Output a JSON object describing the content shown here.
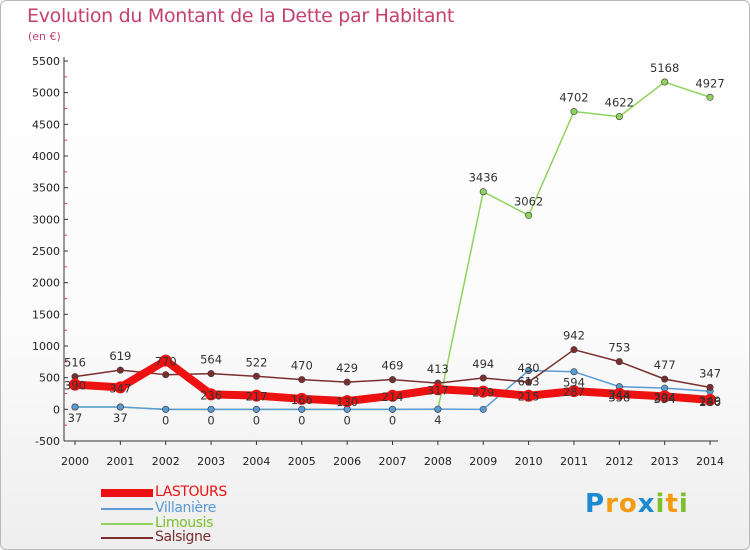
{
  "header": {
    "title": "Evolution du Montant de la Dette par Habitant",
    "unit": "(en €)"
  },
  "logo": {
    "letters": [
      "P",
      "r",
      "o",
      "x",
      "i",
      "t",
      "i"
    ],
    "colors": [
      "#1b8ad0",
      "#f39c12",
      "#f39c12",
      "#1b8ad0",
      "#7cbf2b",
      "#f39c12",
      "#7cbf2b"
    ]
  },
  "chart_data": {
    "type": "line",
    "x": [
      "2000",
      "2001",
      "2002",
      "2003",
      "2004",
      "2005",
      "2006",
      "2007",
      "2008",
      "2009",
      "2010",
      "2011",
      "2012",
      "2013",
      "2014"
    ],
    "ylim": [
      -500,
      5500
    ],
    "yticks": [
      "-500",
      "0",
      "500",
      "1000",
      "1500",
      "2000",
      "2500",
      "3000",
      "3500",
      "4000",
      "4500",
      "5000",
      "5500"
    ],
    "grid": false,
    "legend_position": "bottom-left",
    "series": [
      {
        "name": "LASTOURS",
        "color": "#ee1111",
        "width": 8,
        "values": [
          390,
          347,
          770,
          236,
          217,
          166,
          130,
          214,
          317,
          279,
          215,
          287,
          244,
          204,
          149
        ],
        "labels": [
          "390",
          "347",
          "770",
          "236",
          "217",
          "166",
          "130",
          "214",
          "317",
          "279",
          "215",
          "287",
          "244",
          "204",
          "149"
        ]
      },
      {
        "name": "Villanière",
        "color": "#5b9bd5",
        "width": 1.5,
        "values": [
          37,
          37,
          0,
          0,
          0,
          0,
          0,
          0,
          4,
          0,
          613,
          594,
          358,
          334,
          286
        ],
        "labels": [
          "37",
          "37",
          "0",
          "0",
          "0",
          "0",
          "0",
          "0",
          "4",
          "",
          "613",
          "594",
          "358",
          "334",
          "286"
        ]
      },
      {
        "name": "Limousis",
        "color": "#8fd35c",
        "width": 1.5,
        "values": [
          37,
          37,
          0,
          0,
          0,
          0,
          0,
          0,
          0,
          3436,
          3062,
          4702,
          4622,
          5168,
          4927
        ],
        "labels": [
          "",
          "",
          "",
          "",
          "",
          "",
          "",
          "",
          "",
          "3436",
          "3062",
          "4702",
          "4622",
          "5168",
          "4927"
        ]
      },
      {
        "name": "Salsigne",
        "color": "#7a2e2e",
        "width": 1.5,
        "values": [
          516,
          619,
          547,
          564,
          522,
          470,
          429,
          469,
          413,
          494,
          430,
          942,
          753,
          477,
          347
        ],
        "labels": [
          "516",
          "619",
          "",
          "564",
          "522",
          "470",
          "429",
          "469",
          "413",
          "494",
          "430",
          "942",
          "753",
          "477",
          "347"
        ]
      }
    ]
  }
}
